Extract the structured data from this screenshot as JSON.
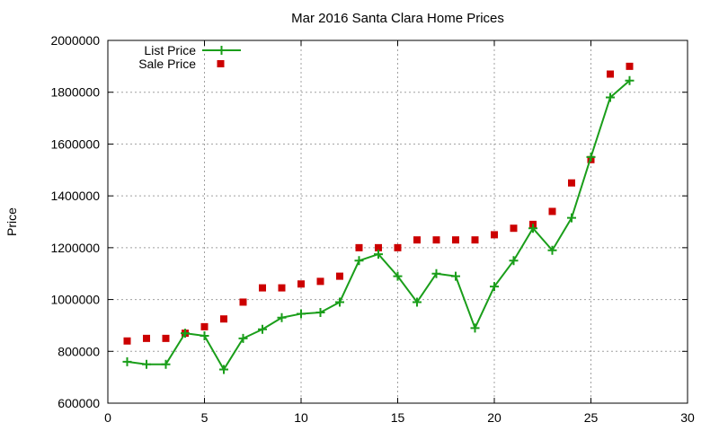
{
  "chart_data": {
    "type": "line",
    "title": "Mar 2016 Santa Clara Home Prices",
    "xlabel": "",
    "ylabel": "Price",
    "xlim": [
      0,
      30
    ],
    "ylim": [
      600000,
      2000000
    ],
    "x_ticks": [
      0,
      5,
      10,
      15,
      20,
      25,
      30
    ],
    "y_ticks": [
      600000,
      800000,
      1000000,
      1200000,
      1400000,
      1600000,
      1800000,
      2000000
    ],
    "x_tick_labels": [
      "0",
      "5",
      "10",
      "15",
      "20",
      "25",
      "30"
    ],
    "y_tick_labels": [
      "600000",
      "800000",
      "1000000",
      "1200000",
      "1400000",
      "1600000",
      "1800000",
      "2000000"
    ],
    "grid": true,
    "legend_position": "top-left",
    "series": [
      {
        "name": "List Price",
        "style": "line-with-plus-markers",
        "color": "#1a9e1a",
        "x": [
          1,
          2,
          3,
          4,
          5,
          6,
          7,
          8,
          9,
          10,
          11,
          12,
          13,
          14,
          15,
          16,
          17,
          18,
          19,
          20,
          21,
          22,
          23,
          24,
          25,
          26,
          27
        ],
        "values": [
          760000,
          750000,
          750000,
          870000,
          860000,
          730000,
          850000,
          885000,
          930000,
          945000,
          950000,
          990000,
          1150000,
          1175000,
          1090000,
          990000,
          1100000,
          1090000,
          890000,
          1050000,
          1150000,
          1275000,
          1190000,
          1315000,
          1550000,
          1780000,
          1845000
        ]
      },
      {
        "name": "Sale Price",
        "style": "square-markers",
        "color": "#cc0000",
        "x": [
          1,
          2,
          3,
          4,
          5,
          6,
          7,
          8,
          9,
          10,
          11,
          12,
          13,
          14,
          15,
          16,
          17,
          18,
          19,
          20,
          21,
          22,
          23,
          24,
          25,
          26,
          27
        ],
        "values": [
          840000,
          850000,
          850000,
          870000,
          895000,
          925000,
          990000,
          1045000,
          1045000,
          1060000,
          1070000,
          1090000,
          1200000,
          1200000,
          1200000,
          1230000,
          1230000,
          1230000,
          1230000,
          1250000,
          1275000,
          1290000,
          1340000,
          1450000,
          1540000,
          1870000,
          1900000
        ]
      }
    ]
  }
}
